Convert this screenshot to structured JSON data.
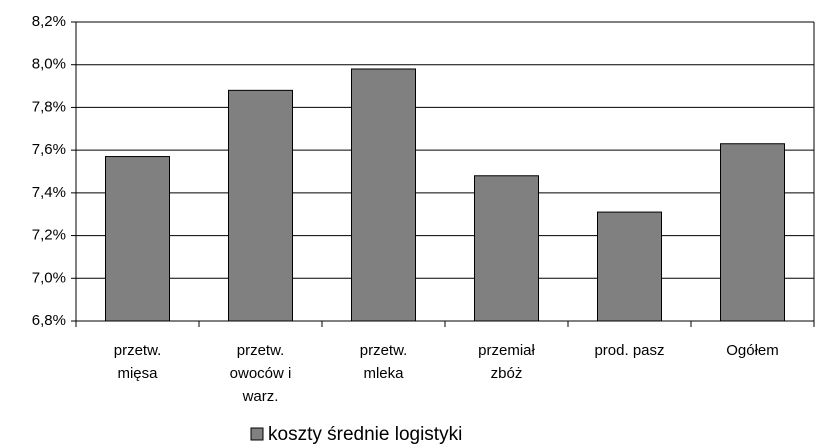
{
  "chart_data": {
    "type": "bar",
    "categories": [
      [
        "przetw.",
        "mięsa"
      ],
      [
        "przetw.",
        "owoców i",
        "warz."
      ],
      [
        "przetw.",
        "mleka"
      ],
      [
        "przemiał",
        "zbóż"
      ],
      [
        "prod. pasz"
      ],
      [
        "Ogółem"
      ]
    ],
    "series": [
      {
        "name": "koszty średnie logistyki",
        "color": "#808080",
        "values": [
          7.57,
          7.88,
          7.98,
          7.48,
          7.31,
          7.63
        ]
      }
    ],
    "ylim": [
      6.8,
      8.2
    ],
    "yticks": [
      {
        "value": 6.8,
        "label": "6,8%"
      },
      {
        "value": 7.0,
        "label": "7,0%"
      },
      {
        "value": 7.2,
        "label": "7,2%"
      },
      {
        "value": 7.4,
        "label": "7,4%"
      },
      {
        "value": 7.6,
        "label": "7,6%"
      },
      {
        "value": 7.8,
        "label": "7,8%"
      },
      {
        "value": 8.0,
        "label": "8,0%"
      },
      {
        "value": 8.2,
        "label": "8,2%"
      }
    ],
    "grid": true,
    "legend": "bottom"
  }
}
